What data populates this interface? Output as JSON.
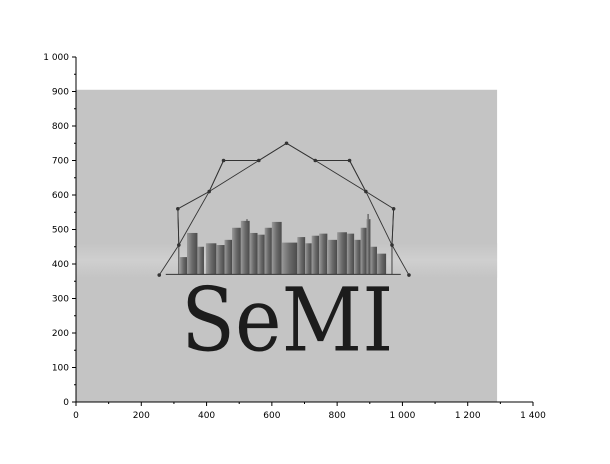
{
  "chart_data": {
    "type": "image",
    "xlim": [
      0,
      1400
    ],
    "ylim": [
      0,
      1000
    ],
    "x_ticks": [
      0,
      200,
      400,
      600,
      800,
      1000,
      1200,
      1400
    ],
    "x_tick_labels": [
      "0",
      "200",
      "400",
      "600",
      "800",
      "1 000",
      "1 200",
      "1 400"
    ],
    "y_ticks": [
      0,
      100,
      200,
      300,
      400,
      500,
      600,
      700,
      800,
      900,
      1000
    ],
    "y_tick_labels": [
      "0",
      "100",
      "200",
      "300",
      "400",
      "500",
      "600",
      "700",
      "800",
      "900",
      "1 000"
    ],
    "minor_ticks": true,
    "grid": false,
    "image_extent": {
      "x": [
        0,
        1290
      ],
      "y": [
        0,
        905
      ]
    },
    "logo": {
      "text": "SeMI",
      "background_color": "#c4c4c4",
      "line_color": "#333333",
      "skyline_color": "#6f6f6f",
      "dome_points": [
        [
          255,
          368
        ],
        [
          315,
          455
        ],
        [
          312,
          560
        ],
        [
          408,
          610
        ],
        [
          452,
          700
        ],
        [
          560,
          700
        ],
        [
          645,
          750
        ],
        [
          733,
          700
        ],
        [
          838,
          700
        ],
        [
          888,
          610
        ],
        [
          973,
          560
        ],
        [
          968,
          455
        ],
        [
          1020,
          368
        ]
      ],
      "baseline_y": 370
    }
  }
}
